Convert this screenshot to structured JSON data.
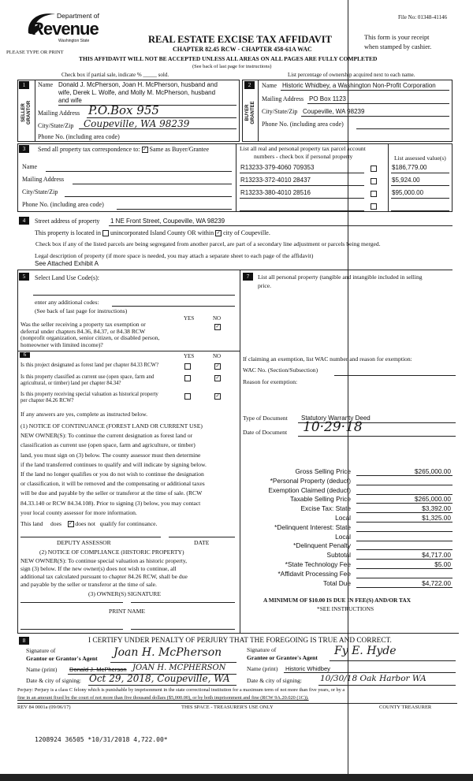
{
  "header": {
    "file_no": "File No: 01348-41146",
    "logo_dept": "Department of",
    "logo_revenue": "Revenue",
    "logo_state": "Washington State",
    "please_type": "PLEASE TYPE OR PRINT",
    "title": "REAL ESTATE EXCISE TAX AFFIDAVIT",
    "chapter": "CHAPTER 82.45 RCW - CHAPTER 458-61A WAC",
    "receipt_1": "This form is your receipt",
    "receipt_2": "when stamped by cashier.",
    "warning": "THIS AFFIDAVIT WILL NOT BE ACCEPTED UNLESS ALL AREAS ON ALL PAGES ARE FULLY COMPLETED",
    "see_back": "(See back of last page for instructions)",
    "partial_sale": "Check box if partial sale, indicate % _____ sold.",
    "ownership": "List percentage of ownership acquired next to each name."
  },
  "section1": {
    "num": "1",
    "side_label": "SELLER GRANTOR",
    "name_label": "Name",
    "name_lines": [
      "Donald J. McPherson, Joan H. McPherson, husband and",
      "wife, Derek L. Wolfe, and Molly M. McPherson, husband",
      "and wife"
    ],
    "mailing_label": "Mailing Address",
    "mailing_value": "P.O.Box 955",
    "city_label": "City/State/Zip",
    "city_value": "Coupeville, WA 98239",
    "phone_label": "Phone No. (including area code)"
  },
  "section2": {
    "num": "2",
    "side_label": "BUYER GRANTEE",
    "name_label": "Name",
    "name_value": "Historic Whidbey, a Washington Non-Profit Corporation",
    "mailing_label": "Mailing Address",
    "mailing_value": "PO Box 1123",
    "city_label": "City/State/Zip",
    "city_value": "Coupeville, WA 98239",
    "phone_label": "Phone No. (including area code)"
  },
  "section3": {
    "num": "3",
    "send_label": "Send all property tax correspondence to:",
    "same_as": "Same as Buyer/Grantee",
    "same_as_checked": true,
    "name_label": "Name",
    "mailing_label": "Mailing Address",
    "city_label": "City/State/Zip",
    "phone_label": "Phone No. (including area code)",
    "parcels_header_1": "List all real and personal property tax parcel account",
    "parcels_header_2": "numbers - check box if personal property",
    "values_header": "List assessed value(s)",
    "parcels": [
      {
        "number": "R13233-379-4060  709353",
        "personal": false,
        "value": "$186,779.00"
      },
      {
        "number": "R13233-372-4010  28437",
        "personal": false,
        "value": "$5,924.00"
      },
      {
        "number": "R13233-380-4010  28516",
        "personal": false,
        "value": "$95,000.00"
      },
      {
        "number": "",
        "personal": false,
        "value": ""
      }
    ]
  },
  "section4": {
    "num": "4",
    "street_label": "Street address of property",
    "street_value": "1 NE Front Street, Coupeville, WA 98239",
    "located_text": "This property is located in",
    "unincorporated": "unincorporated Island County OR within",
    "city_of": "city of Coupeville.",
    "city_checked": true,
    "segregated": "Check box if any of the listed parcels are being segregated from another parcel, are part of a secondary line adjustment or parcels being merged.",
    "legal_label": "Legal description of property (if more space is needed, you may attach a separate sheet to each page of the affidavit)",
    "legal_value": "See Attached Exhibit A"
  },
  "section5": {
    "num": "5",
    "land_use_label": "Select Land Use Code(s):",
    "additional_codes": "enter any additional codes:",
    "see_back": "(See back of last page for instructions)",
    "yes": "YES",
    "no": "NO",
    "exemption_q": [
      "Was the seller receiving a property tax exemption or",
      "deferral under chapters 84.36, 84.37, or 84.38 RCW",
      "(nonprofit organization, senior citizen, or disabled person,",
      "homeowner with limited income)?"
    ],
    "exemption_answer": "NO"
  },
  "section6": {
    "num": "6",
    "yes": "YES",
    "no": "NO",
    "questions": [
      {
        "lines": [
          "Is this project designated as forest land per chapter 84.33 RCW?"
        ],
        "answer": "NO"
      },
      {
        "lines": [
          "Is this property classified as current use (open space, farm and",
          "agricultural, or timber) land per chapter 84.34?"
        ],
        "answer": "NO"
      },
      {
        "lines": [
          "Is this property receiving special valuation as historical property",
          "per chapter 84.26 RCW?"
        ],
        "answer": "NO"
      }
    ],
    "if_yes": "If any answers are yes, complete as instructed below.",
    "notice1": [
      "(1) NOTICE OF CONTINUANCE (FOREST LAND OR CURRENT USE)",
      "NEW OWNER(S): To continue the current designation as forest land or",
      "classification as current use (open space, farm and agriculture, or timber)",
      "land, you must sign on (3) below.  The county assessor must then determine",
      "if the land transferred continues to qualify and will indicate by signing below.",
      "If the land no longer qualifies or you do not wish to continue the designation",
      "or classification, it will be removed and the compensating or additional taxes",
      "will be due and payable by the seller or transferor at the time of sale.  (RCW",
      "84.33.140 or RCW 84.34.108).  Prior to signing (3) below, you may contact",
      "your local county assessor for more information."
    ],
    "this_land": "This land",
    "does": "does",
    "does_not": "does not",
    "qualify": "qualify for continuance.",
    "does_not_checked": true,
    "deputy_assessor": "DEPUTY ASSESSOR",
    "date": "DATE",
    "notice2_title": "(2) NOTICE OF COMPLIANCE (HISTORIC PROPERTY)",
    "notice2": [
      "NEW OWNER(S): To continue special valuation as historic property,",
      "sign (3) below.  If the new owner(s) does not wish to continue, all",
      "additional tax calculated pursuant to chapter 84.26 RCW, shall be due",
      "and payable by the seller or transferor at the time of sale."
    ],
    "owner_signature": "(3) OWNER(S) SIGNATURE",
    "print_name": "PRINT NAME"
  },
  "section7": {
    "num": "7",
    "personal_property_1": "List all personal property (tangible and intangible included in selling",
    "personal_property_2": "price.",
    "exemption_claim": "If claiming an exemption, list WAC number and reason for exemption:",
    "wac_label": "WAC No. (Section/Subsection)",
    "reason_label": "Reason for exemption:",
    "doc_type_label": "Type of Document",
    "doc_type_value": "Statutory Warranty Deed",
    "doc_date_label": "Date of Document",
    "doc_date_value": "10·29·18",
    "financials": [
      {
        "label": "Gross Selling Price",
        "value": "$265,000.00"
      },
      {
        "label": "*Personal Property (deduct)",
        "value": ""
      },
      {
        "label": "Exemption Claimed (deduct)",
        "value": ""
      },
      {
        "label": "Taxable Selling Price",
        "value": "$265,000.00"
      },
      {
        "label": "Excise Tax:  State",
        "value": "$3,392.00"
      },
      {
        "label": "Local",
        "value": "$1,325.00"
      },
      {
        "label": "*Delinquent Interest:  State",
        "value": ""
      },
      {
        "label": "Local",
        "value": ""
      },
      {
        "label": "*Delinquent Penalty",
        "value": ""
      },
      {
        "label": "Subtotal",
        "value": "$4,717.00"
      },
      {
        "label": "*State Technology Fee",
        "value": "$5.00"
      },
      {
        "label": "*Affidavit Processing Fee",
        "value": ""
      },
      {
        "label": "Total Due",
        "value": "$4,722.00"
      }
    ],
    "minimum": "A MINIMUM OF $10.00 IS DUE IN FEE(S) AND/OR TAX",
    "see_instructions": "*SEE INSTRUCTIONS"
  },
  "section8": {
    "num": "8",
    "certify": "I CERTIFY UNDER PENALTY OF PERJURY THAT THE FOREGOING IS TRUE AND CORRECT.",
    "grantor_sig_label_1": "Signature of",
    "grantor_sig_label_2": "Grantor or Grantor's Agent",
    "grantor_signature": "Joan H. McPherson",
    "grantor_name_label": "Name (print)",
    "grantor_name_struck": "Donald J. McPherson",
    "grantor_name_value": "JOAN H. MCPHERSON",
    "grantor_date_label": "Date & city of signing:",
    "grantor_date_value": "Oct 29, 2018, Coupeville, WA",
    "grantee_sig_label_1": "Signature of",
    "grantee_sig_label_2": "Grantee or Grantee's Agent",
    "grantee_signature": "Fy E. Hyde",
    "grantee_name_label": "Name (print)",
    "grantee_name_value": "Historic Whidbey",
    "grantee_date_label": "Date & city of signing:",
    "grantee_date_value": "10/30/18  Oak Harbor WA"
  },
  "footer": {
    "perjury_1": "Perjury:  Perjury is a class C felony which is punishable by imprisonment in the state correctional institution for a maximum term of not more than five years, or by a",
    "perjury_2": "fine in an amount fixed by the court of not more than five thousand dollars ($5,000.00), or by both imprisonment and fine (RCW 9A.20.020 (1C)).",
    "form_no": "REV 84 0001a (09/06/17)",
    "treasurer_space": "THIS SPACE - TREASURER'S USE ONLY",
    "county_treasurer": "COUNTY TREASURER",
    "stamp": "1208924 36505 *10/31/2018 4,722.00*"
  }
}
